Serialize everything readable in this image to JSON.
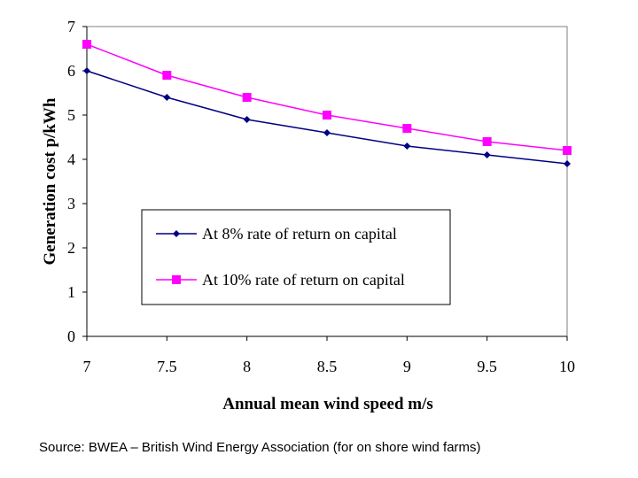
{
  "chart_data": {
    "type": "line",
    "title": "",
    "xlabel": "Annual mean wind speed m/s",
    "ylabel": "Generation cost p/kWh",
    "x": [
      7,
      7.5,
      8,
      8.5,
      9,
      9.5,
      10
    ],
    "x_tick_labels": [
      "7",
      "7.5",
      "8",
      "8.5",
      "9",
      "9.5",
      "10"
    ],
    "y_ticks": [
      0,
      1,
      2,
      3,
      4,
      5,
      6,
      7
    ],
    "xlim": [
      7,
      10
    ],
    "ylim": [
      0,
      7
    ],
    "grid": false,
    "legend_position": "center-left inside plot",
    "series": [
      {
        "name": "At 8% rate of return on capital",
        "values": [
          6.0,
          5.4,
          4.9,
          4.6,
          4.3,
          4.1,
          3.9
        ],
        "color": "#000080",
        "marker": "diamond"
      },
      {
        "name": "At 10% rate of return on capital",
        "values": [
          6.6,
          5.9,
          5.4,
          5.0,
          4.7,
          4.4,
          4.2
        ],
        "color": "#ff00ff",
        "marker": "square"
      }
    ]
  },
  "source_note": "Source: BWEA – British Wind Energy Association (for on shore wind farms)"
}
